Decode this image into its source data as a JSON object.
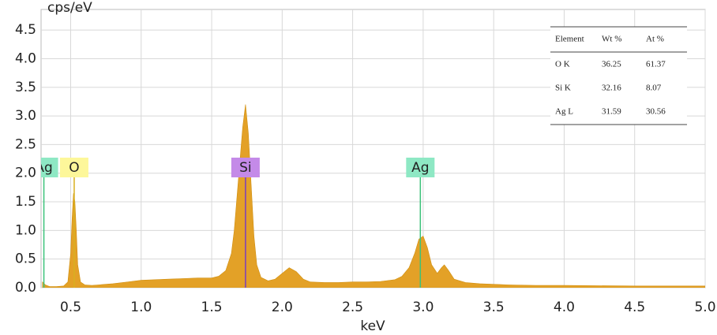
{
  "chart_data": {
    "type": "area",
    "y_label": "cps/eV",
    "x_label": "keV",
    "xlim": [
      0.29,
      5.0
    ],
    "ylim": [
      0,
      4.86
    ],
    "xticks": [
      0.5,
      {
        "value": 1,
        "label": "1.0"
      },
      1.5,
      {
        "value": 2,
        "label": "2.0"
      },
      2.5,
      {
        "value": 3,
        "label": "3.0"
      },
      3.5,
      {
        "value": 4,
        "label": "4.0"
      },
      4.5,
      {
        "value": 5,
        "label": "5.0"
      }
    ],
    "yticks": [
      {
        "value": 0,
        "label": "0.0"
      },
      0.5,
      {
        "value": 1,
        "label": "1.0"
      },
      1.5,
      {
        "value": 2,
        "label": "2.0"
      },
      2.5,
      {
        "value": 3,
        "label": "3.0"
      },
      3.5,
      {
        "value": 4,
        "label": "4.0"
      },
      4.5
    ],
    "grid": true,
    "color": "#e3a127",
    "x": [
      0.3,
      0.32,
      0.35,
      0.4,
      0.45,
      0.48,
      0.5,
      0.51,
      0.52,
      0.53,
      0.54,
      0.55,
      0.57,
      0.6,
      0.65,
      0.7,
      0.8,
      0.9,
      1.0,
      1.1,
      1.2,
      1.3,
      1.4,
      1.5,
      1.55,
      1.6,
      1.64,
      1.66,
      1.68,
      1.7,
      1.72,
      1.74,
      1.76,
      1.78,
      1.8,
      1.82,
      1.85,
      1.9,
      1.95,
      2.0,
      2.05,
      2.1,
      2.15,
      2.2,
      2.3,
      2.4,
      2.5,
      2.6,
      2.7,
      2.8,
      2.85,
      2.9,
      2.94,
      2.97,
      3.0,
      3.03,
      3.06,
      3.1,
      3.13,
      3.15,
      3.18,
      3.22,
      3.3,
      3.4,
      3.5,
      3.6,
      3.8,
      4.0,
      4.5,
      5.0
    ],
    "values": [
      0.1,
      0.05,
      0.02,
      0.02,
      0.03,
      0.1,
      0.6,
      1.2,
      1.65,
      1.5,
      1.0,
      0.4,
      0.1,
      0.05,
      0.04,
      0.05,
      0.07,
      0.1,
      0.13,
      0.14,
      0.15,
      0.16,
      0.17,
      0.17,
      0.2,
      0.3,
      0.6,
      1.0,
      1.6,
      2.2,
      2.8,
      3.2,
      2.7,
      1.8,
      0.9,
      0.4,
      0.18,
      0.12,
      0.15,
      0.25,
      0.35,
      0.28,
      0.15,
      0.1,
      0.09,
      0.09,
      0.1,
      0.1,
      0.11,
      0.14,
      0.2,
      0.35,
      0.6,
      0.85,
      0.9,
      0.7,
      0.4,
      0.25,
      0.35,
      0.4,
      0.3,
      0.15,
      0.09,
      0.07,
      0.06,
      0.05,
      0.04,
      0.04,
      0.03,
      0.03
    ],
    "peak_labels": [
      {
        "text": "Ag",
        "x": 0.31,
        "color": "#8ee8c4",
        "line_color": "#3cc27a"
      },
      {
        "text": "O",
        "x": 0.525,
        "color": "#fdf79a",
        "line_color": "#d8b020"
      },
      {
        "text": "Si",
        "x": 1.74,
        "color": "#c48ae8",
        "line_color": "#7a3cc0"
      },
      {
        "text": "Ag",
        "x": 2.98,
        "color": "#8ee8c4",
        "line_color": "#3cc27a"
      }
    ],
    "table": {
      "columns": [
        "Element",
        "Wt %",
        "At %"
      ],
      "rows": [
        [
          "O K",
          36.25,
          61.37
        ],
        [
          "Si K",
          32.16,
          8.07
        ],
        [
          "Ag L",
          31.59,
          30.56
        ]
      ]
    }
  }
}
